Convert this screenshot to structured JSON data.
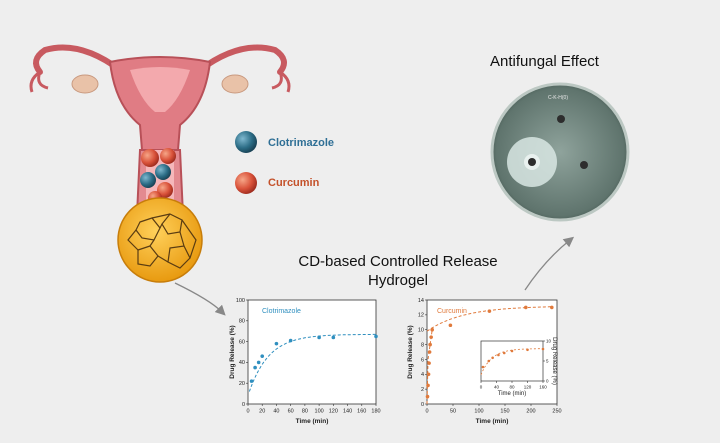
{
  "titles": {
    "antifungal": "Antifungal Effect",
    "hydrogel": "CD-based Controlled Release Hydrogel"
  },
  "legend": {
    "clotrimazole": "Clotrimazole",
    "curcumin": "Curcumin"
  },
  "petri_label": "C-K-H(0)",
  "colors": {
    "clotrimazole": "#2f6f95",
    "curcumin": "#e07a3c",
    "uterus": "#d9767a",
    "background": "#eeeeee"
  },
  "chart_data": [
    {
      "type": "scatter",
      "title": "Clotrimazole",
      "xlabel": "Time (min)",
      "ylabel": "Drug Release (%)",
      "xlim": [
        0,
        180
      ],
      "ylim": [
        0,
        100
      ],
      "x_ticks": [
        "0",
        "20",
        "40",
        "60",
        "80",
        "100",
        "120",
        "140",
        "160",
        "180"
      ],
      "y_ticks": [
        "0",
        "20",
        "40",
        "60",
        "80",
        "100"
      ],
      "series": [
        {
          "x": [
            5,
            10,
            15,
            20,
            40,
            60,
            100,
            120,
            180
          ],
          "y": [
            22,
            35,
            40,
            46,
            58,
            61,
            64,
            64,
            65
          ]
        }
      ],
      "fit": "dashed saturation curve"
    },
    {
      "type": "scatter",
      "title": "Curcumin",
      "xlabel": "Time (min)",
      "ylabel": "Drug Release (%)",
      "xlim": [
        0,
        250
      ],
      "ylim": [
        0,
        14
      ],
      "x_ticks": [
        "0",
        "50",
        "100",
        "150",
        "200",
        "250"
      ],
      "y_ticks": [
        "0",
        "2",
        "4",
        "6",
        "8",
        "10",
        "12",
        "14"
      ],
      "series": [
        {
          "x": [
            1,
            2,
            3,
            4,
            5,
            6,
            8,
            10,
            45,
            120,
            190,
            240
          ],
          "y": [
            1.0,
            2.5,
            4.0,
            5.5,
            7.0,
            8.0,
            9.0,
            10.0,
            10.6,
            12.5,
            13.0,
            13.0
          ]
        }
      ],
      "inset": {
        "xlabel": "Time (min)",
        "ylabel": "Drug Release (%)",
        "xlim": [
          0,
          160
        ],
        "ylim": [
          0,
          10
        ],
        "x_ticks": [
          "0",
          "40",
          "80",
          "120",
          "160"
        ],
        "y_ticks": [
          "0",
          "5",
          "10"
        ],
        "x": [
          5,
          20,
          30,
          45,
          60,
          80,
          120,
          160
        ],
        "y": [
          3.5,
          5.0,
          5.8,
          6.5,
          7.0,
          7.5,
          7.8,
          8.0
        ]
      }
    }
  ]
}
